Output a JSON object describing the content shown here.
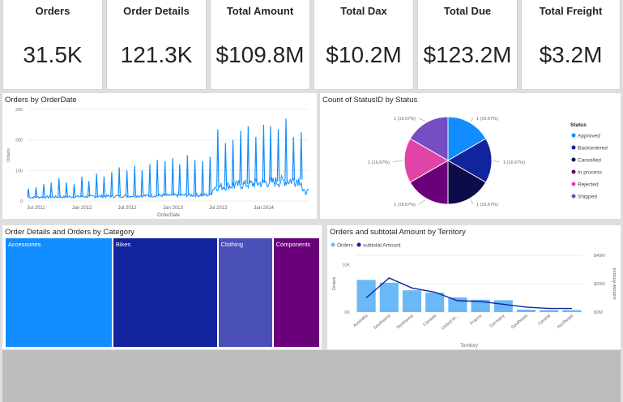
{
  "kpis": [
    {
      "label": "Orders",
      "value": "31.5K"
    },
    {
      "label": "Order Details",
      "value": "121.3K"
    },
    {
      "label": "Total Amount",
      "value": "$109.8M"
    },
    {
      "label": "Total Dax",
      "value": "$10.2M"
    },
    {
      "label": "Total Due",
      "value": "$123.2M"
    },
    {
      "label": "Total Freight",
      "value": "$3.2M"
    }
  ],
  "colors": {
    "blue": "#118dff",
    "navy": "#12239e",
    "darkNavy": "#0e0b49",
    "orange": "#e66c37",
    "purple": "#6b007b",
    "pink": "#e044a7",
    "violet": "#744ec2",
    "steel": "#4a4fb8",
    "lightBlue": "#6ab8f7"
  },
  "chart_data": [
    {
      "type": "line",
      "title": "Orders by OrderDate",
      "xlabel": "OrderDate",
      "ylabel": "Orders",
      "yticks": [
        0,
        100,
        200,
        300
      ],
      "ylim": [
        0,
        300
      ],
      "xticks": [
        "Jul 2011",
        "Jan 2012",
        "Jul 2012",
        "Jan 2013",
        "Jul 2013",
        "Jan 2014"
      ],
      "x_range": [
        "2011-05-31",
        "2014-06-30"
      ],
      "spikes": [
        {
          "date": "2011-05-31",
          "value": 40
        },
        {
          "date": "2011-07-01",
          "value": 45
        },
        {
          "date": "2011-08-01",
          "value": 55
        },
        {
          "date": "2011-08-31",
          "value": 60
        },
        {
          "date": "2011-10-01",
          "value": 75
        },
        {
          "date": "2011-10-31",
          "value": 60
        },
        {
          "date": "2011-12-01",
          "value": 55
        },
        {
          "date": "2012-01-01",
          "value": 80
        },
        {
          "date": "2012-01-29",
          "value": 65
        },
        {
          "date": "2012-02-29",
          "value": 90
        },
        {
          "date": "2012-03-30",
          "value": 80
        },
        {
          "date": "2012-04-30",
          "value": 95
        },
        {
          "date": "2012-05-30",
          "value": 110
        },
        {
          "date": "2012-06-30",
          "value": 100
        },
        {
          "date": "2012-07-31",
          "value": 115
        },
        {
          "date": "2012-08-30",
          "value": 100
        },
        {
          "date": "2012-09-30",
          "value": 120
        },
        {
          "date": "2012-10-30",
          "value": 135
        },
        {
          "date": "2012-11-30",
          "value": 130
        },
        {
          "date": "2012-12-31",
          "value": 140
        },
        {
          "date": "2013-01-28",
          "value": 120
        },
        {
          "date": "2013-02-28",
          "value": 150
        },
        {
          "date": "2013-03-30",
          "value": 135
        },
        {
          "date": "2013-04-30",
          "value": 130
        },
        {
          "date": "2013-05-30",
          "value": 145
        },
        {
          "date": "2013-06-30",
          "value": 235
        },
        {
          "date": "2013-07-31",
          "value": 190
        },
        {
          "date": "2013-08-30",
          "value": 200
        },
        {
          "date": "2013-09-30",
          "value": 230
        },
        {
          "date": "2013-10-30",
          "value": 245
        },
        {
          "date": "2013-11-30",
          "value": 210
        },
        {
          "date": "2013-12-31",
          "value": 250
        },
        {
          "date": "2014-01-28",
          "value": 245
        },
        {
          "date": "2014-02-28",
          "value": 235
        },
        {
          "date": "2014-03-31",
          "value": 270
        },
        {
          "date": "2014-04-30",
          "value": 210
        },
        {
          "date": "2014-05-31",
          "value": 225
        }
      ],
      "baseline": [
        {
          "date": "2011-05-31",
          "value": 12
        },
        {
          "date": "2012-06-01",
          "value": 16
        },
        {
          "date": "2013-05-31",
          "value": 20
        },
        {
          "date": "2013-06-15",
          "value": 45
        },
        {
          "date": "2013-12-31",
          "value": 60
        },
        {
          "date": "2014-05-31",
          "value": 70
        },
        {
          "date": "2014-06-05",
          "value": 30
        },
        {
          "date": "2014-06-30",
          "value": 30
        }
      ]
    },
    {
      "type": "pie",
      "title": "Count of StatusID by Status",
      "legend_title": "Status",
      "legend": "right",
      "slices": [
        {
          "name": "Approved",
          "value": 1,
          "label": "1 (16.67%)",
          "color": "#118dff"
        },
        {
          "name": "Backordered",
          "value": 1,
          "label": "1 (16.67%)",
          "color": "#12239e"
        },
        {
          "name": "Cancelled",
          "value": 1,
          "label": "1 (16.67%)",
          "color": "#0e0b49"
        },
        {
          "name": "In process",
          "value": 1,
          "label": "1 (16.67%)",
          "color": "#6b007b"
        },
        {
          "name": "Rejected",
          "value": 1,
          "label": "1 (16.67%)",
          "color": "#e044a7"
        },
        {
          "name": "Shipped",
          "value": 1,
          "label": "1 (16.67%)",
          "color": "#744ec2"
        }
      ]
    },
    {
      "type": "treemap",
      "title": "Order Details and Orders by Category",
      "categories": [
        {
          "name": "Accessories",
          "value": 41,
          "color": "#118dff"
        },
        {
          "name": "Bikes",
          "value": 40,
          "color": "#12239e"
        },
        {
          "name": "Clothing",
          "value": 21,
          "color": "#4a4fb8"
        },
        {
          "name": "Components",
          "value": 18,
          "color": "#6b007b"
        }
      ]
    },
    {
      "type": "bar",
      "title": "Orders and subtotal Amount by Territory",
      "legend": [
        "Orders",
        "subtotal Amount"
      ],
      "xlabel": "Territory",
      "ylabel": "Orders",
      "y2label": "subtotal Amount",
      "yticks": [
        "0K",
        "10K"
      ],
      "y2ticks": [
        "$0M",
        "$20M",
        "$40M"
      ],
      "ylim": [
        0,
        12000
      ],
      "y2lim": [
        0,
        40
      ],
      "categories": [
        "Australia",
        "Southwest",
        "Northwest",
        "Canada",
        "United Ki...",
        "France",
        "Germany",
        "Southeast",
        "Central",
        "Northeast"
      ],
      "orders": [
        6800,
        6200,
        4600,
        4100,
        3100,
        2600,
        2500,
        500,
        400,
        400
      ],
      "subtotal": [
        10,
        24,
        17,
        14,
        8,
        7.5,
        5.5,
        3.5,
        2.5,
        2.5
      ]
    }
  ]
}
